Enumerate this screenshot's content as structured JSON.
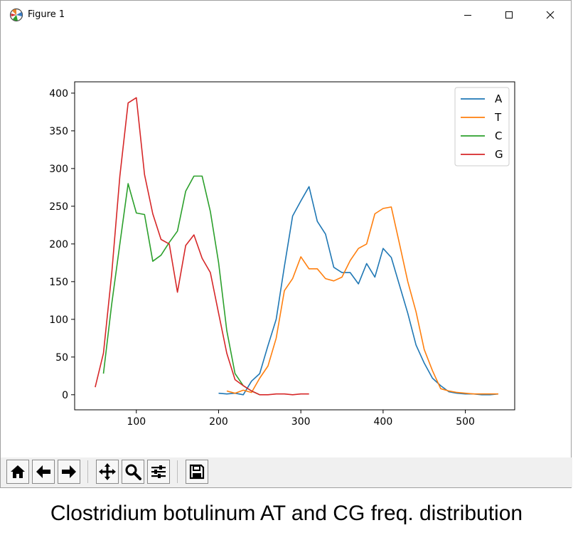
{
  "window": {
    "title": "Figure 1",
    "icon": "matplotlib-icon"
  },
  "controls": {
    "minimize": "minimize-icon",
    "maximize": "maximize-icon",
    "close": "close-icon"
  },
  "toolbar": {
    "buttons": [
      "home-icon",
      "back-arrow-icon",
      "forward-arrow-icon",
      "pan-icon",
      "zoom-icon",
      "configure-subplots-icon",
      "save-icon"
    ]
  },
  "caption": "Clostridium botulinum AT and CG freq. distribution",
  "chart_data": {
    "type": "line",
    "title": "",
    "xlabel": "",
    "ylabel": "",
    "xlim": [
      25,
      560
    ],
    "ylim": [
      -20,
      415
    ],
    "xticks": [
      100,
      200,
      300,
      400,
      500
    ],
    "yticks": [
      0,
      50,
      100,
      150,
      200,
      250,
      300,
      350,
      400
    ],
    "grid": false,
    "legend": "top-right",
    "series": [
      {
        "name": "A",
        "color": "#1f77b4",
        "x": [
          200,
          210,
          220,
          230,
          240,
          250,
          260,
          270,
          280,
          290,
          300,
          310,
          320,
          330,
          340,
          350,
          360,
          370,
          380,
          390,
          400,
          410,
          420,
          430,
          440,
          450,
          460,
          470,
          480,
          490,
          500,
          510,
          520,
          530,
          540
        ],
        "y": [
          2,
          1,
          2,
          0,
          18,
          28,
          65,
          100,
          170,
          237,
          257,
          276,
          230,
          213,
          169,
          162,
          162,
          147,
          174,
          156,
          194,
          182,
          145,
          108,
          66,
          42,
          22,
          12,
          4,
          2,
          1,
          1,
          0,
          0,
          1
        ]
      },
      {
        "name": "T",
        "color": "#ff7f0e",
        "x": [
          210,
          220,
          230,
          240,
          250,
          260,
          270,
          280,
          290,
          300,
          310,
          320,
          330,
          340,
          350,
          360,
          370,
          380,
          390,
          400,
          410,
          420,
          430,
          440,
          450,
          460,
          470,
          480,
          490,
          500,
          510,
          520,
          530,
          540
        ],
        "y": [
          5,
          2,
          6,
          3,
          22,
          38,
          75,
          138,
          154,
          183,
          167,
          167,
          154,
          151,
          156,
          178,
          194,
          200,
          240,
          247,
          249,
          200,
          150,
          110,
          60,
          32,
          8,
          5,
          3,
          2,
          1,
          1,
          1,
          1
        ]
      },
      {
        "name": "C",
        "color": "#2ca02c",
        "x": [
          60,
          70,
          80,
          90,
          100,
          110,
          120,
          130,
          140,
          150,
          160,
          170,
          180,
          190,
          200,
          210,
          220,
          230,
          240,
          250
        ],
        "y": [
          28,
          120,
          200,
          280,
          241,
          239,
          177,
          185,
          202,
          217,
          270,
          290,
          290,
          243,
          175,
          85,
          28,
          12,
          5,
          0
        ]
      },
      {
        "name": "G",
        "color": "#d62728",
        "x": [
          50,
          60,
          70,
          80,
          90,
          100,
          110,
          120,
          130,
          140,
          150,
          160,
          170,
          180,
          190,
          200,
          210,
          220,
          230,
          240,
          250,
          260,
          270,
          280,
          290,
          300,
          310
        ],
        "y": [
          10,
          55,
          160,
          290,
          387,
          394,
          292,
          240,
          206,
          200,
          136,
          198,
          212,
          181,
          162,
          108,
          55,
          20,
          12,
          5,
          0,
          0,
          1,
          1,
          0,
          1,
          1
        ]
      }
    ]
  }
}
